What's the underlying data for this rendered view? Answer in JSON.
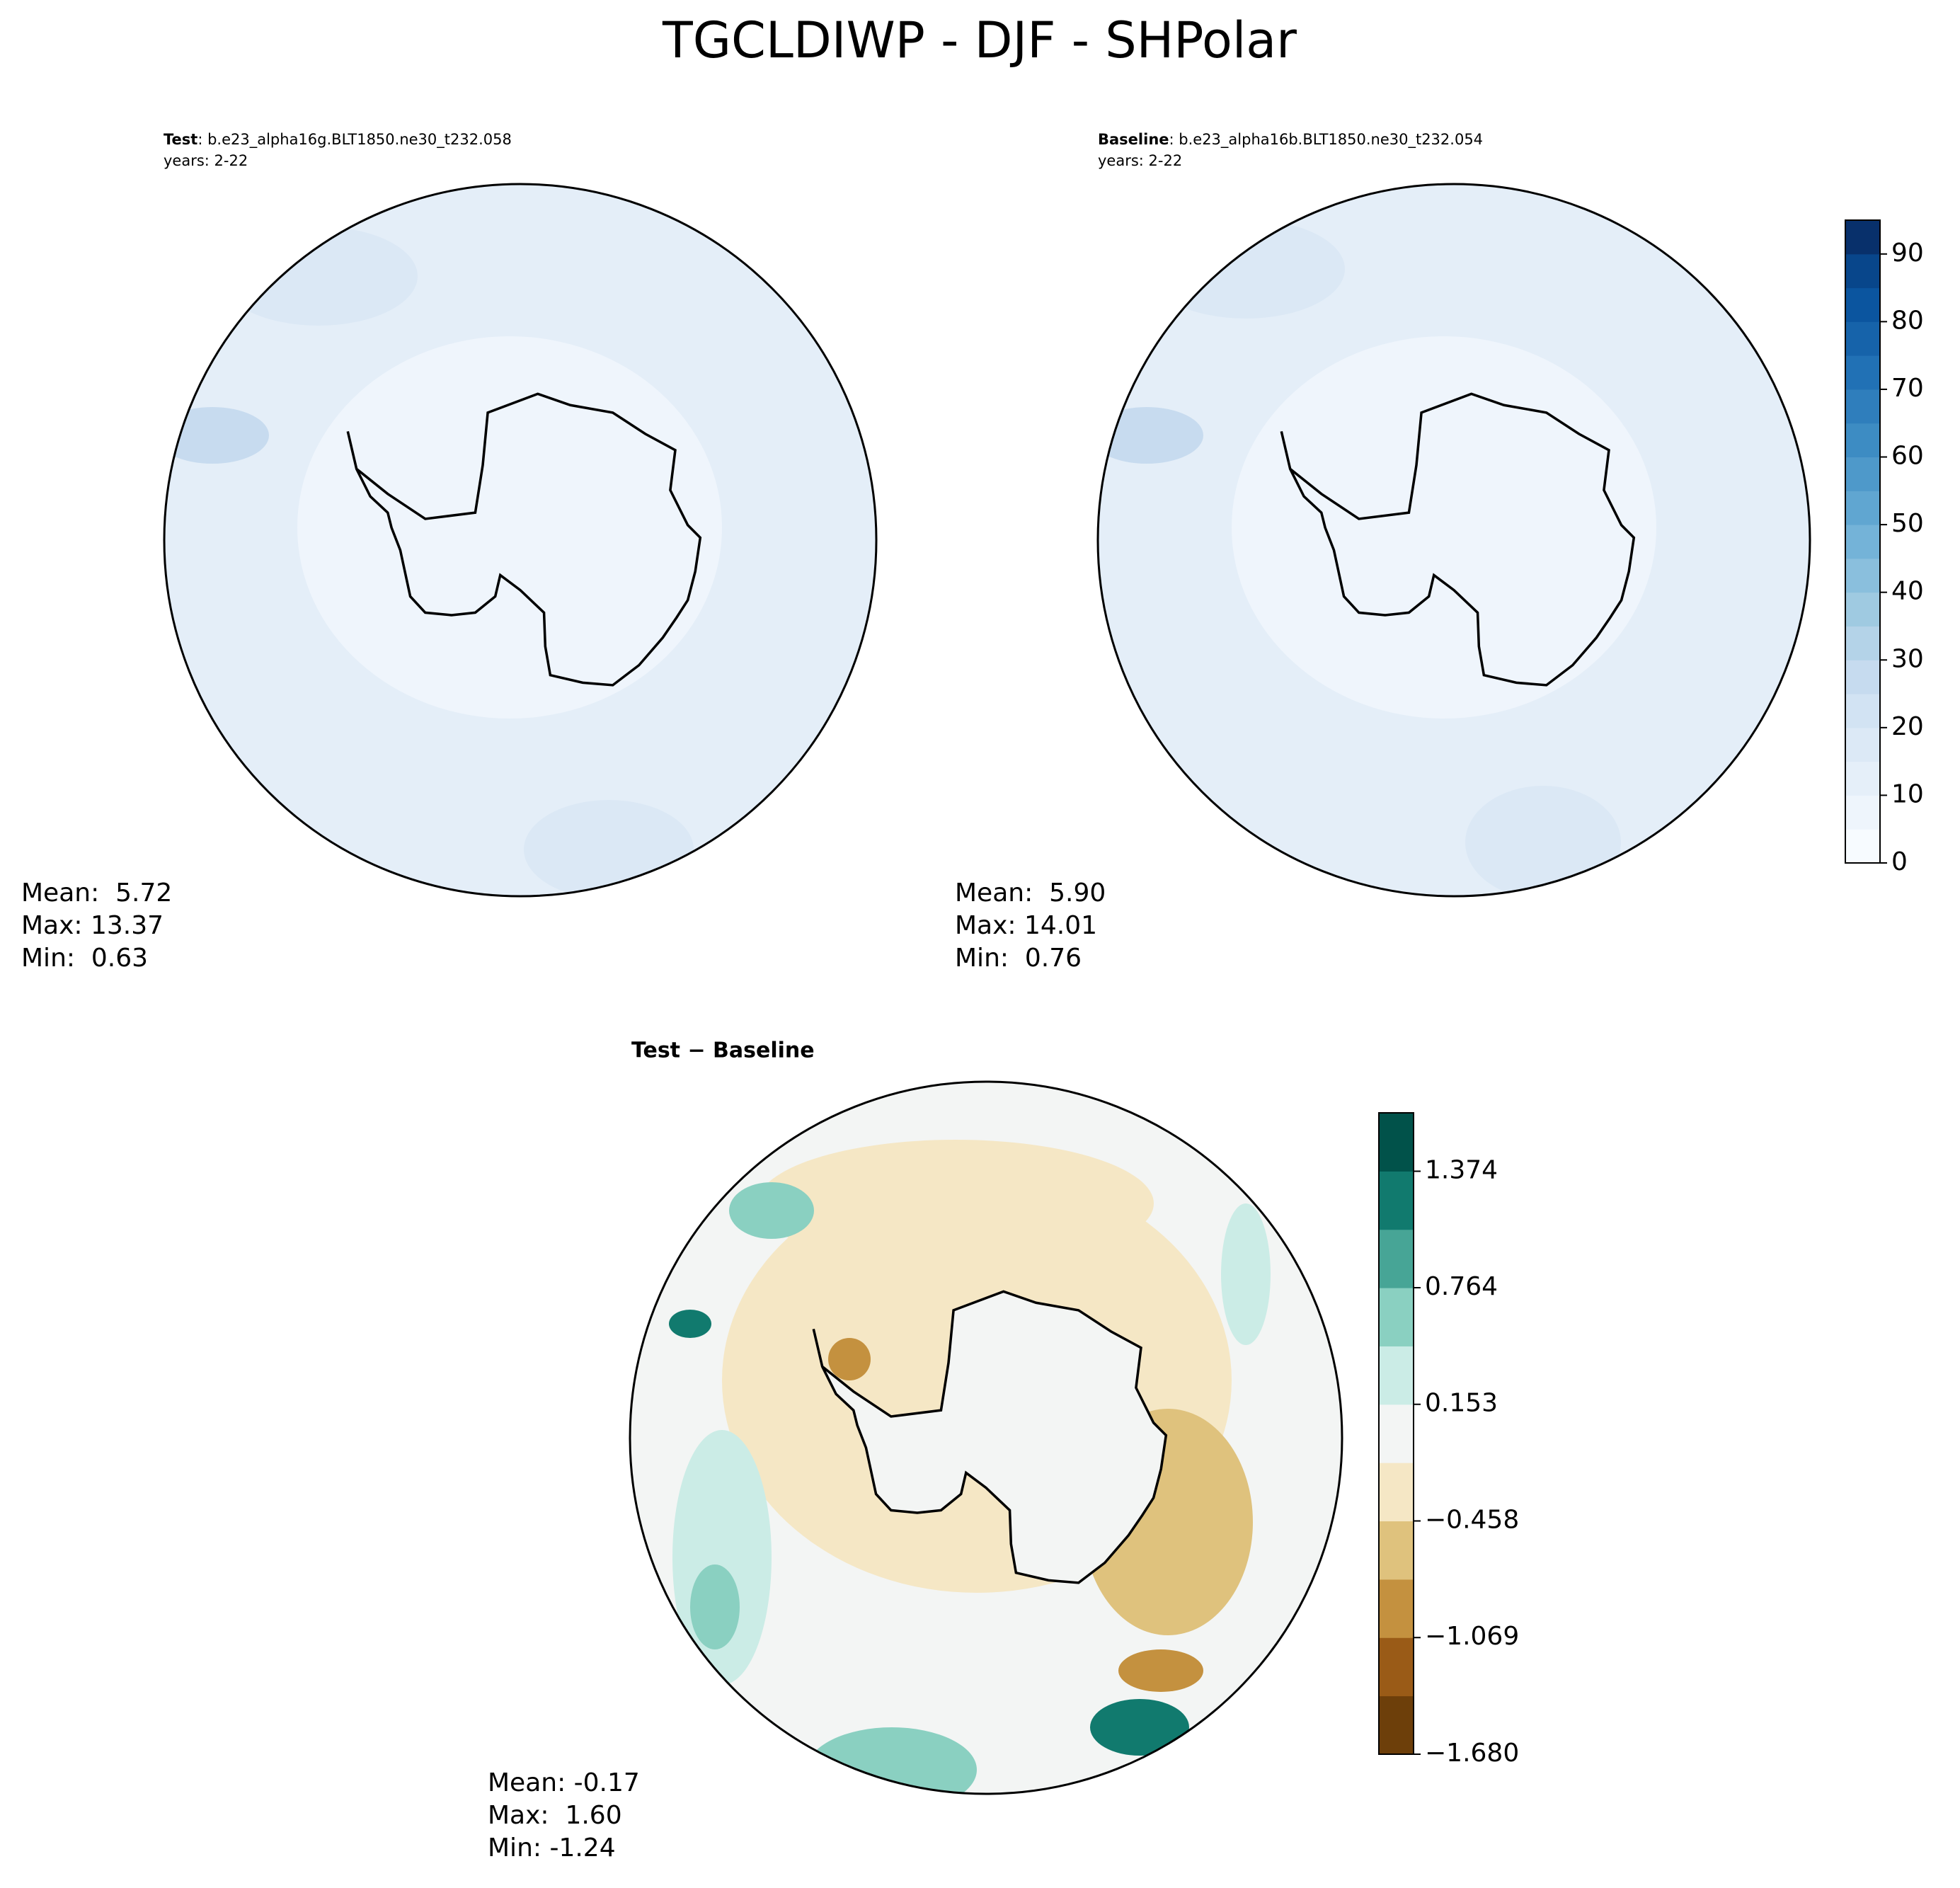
{
  "title": "TGCLDIWP - DJF - SHPolar",
  "panels": [
    {
      "name": "Test",
      "case": ": b.e23_alpha16g.BLT1850.ne30_t232.058",
      "years": "years: 2-22",
      "stats": [
        "Mean:  5.72",
        "Max: 13.37",
        "Min:  0.63"
      ]
    },
    {
      "name": "Baseline",
      "case": ": b.e23_alpha16b.BLT1850.ne30_t232.054",
      "years": "years: 2-22",
      "stats": [
        "Mean:  5.90",
        "Max: 14.01",
        "Min:  0.76"
      ]
    },
    {
      "name": "Test − Baseline",
      "stats": [
        "Mean: -0.17",
        "Max:  1.60",
        "Min: -1.24"
      ]
    }
  ],
  "colorbars": [
    {
      "lim": [
        0,
        95
      ],
      "ticks": [
        0,
        10,
        20,
        30,
        40,
        50,
        60,
        70,
        80,
        90
      ],
      "colors": [
        "#f7fbff",
        "#eef5fc",
        "#e5eff9",
        "#dce9f6",
        "#d2e3f3",
        "#c6dbef",
        "#b4d3e8",
        "#9fcae1",
        "#8abfdd",
        "#74b3d8",
        "#60a6d1",
        "#4e99ca",
        "#3d8cc3",
        "#2f7ebc",
        "#2171b5",
        "#1663aa",
        "#0b559f",
        "#08468b",
        "#08306b"
      ]
    },
    {
      "lim": [
        -1.68,
        1.68
      ],
      "ticks": [
        {
          "value": -1.68,
          "label": "−1.680"
        },
        {
          "value": -1.069,
          "label": "−1.069"
        },
        {
          "value": -0.458,
          "label": "−0.458"
        },
        0.153,
        0.764,
        1.374
      ],
      "colors": [
        "#6d3f0a",
        "#9a5b17",
        "#c4913f",
        "#dfc27d",
        "#f5e7c5",
        "#f3f5f4",
        "#cbece6",
        "#8ad0c1",
        "#47a596",
        "#117a6e",
        "#01524a"
      ]
    }
  ]
}
